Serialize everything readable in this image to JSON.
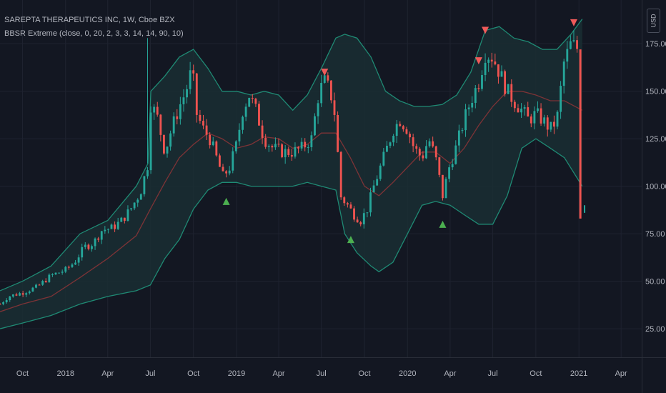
{
  "header": {
    "symbol_line": "SAREPTA THERAPEUTICS INC, 1W, Cboe BZX",
    "indicator_line": "BBSR Extreme (close, 0, 20, 2, 3, 3, 14, 14, 90, 10)",
    "currency": "USD"
  },
  "colors": {
    "background": "#131722",
    "grid": "#1f2330",
    "up": "#26a69a",
    "down": "#ef5350",
    "band": "#1f8a74",
    "band_fill": "#1a2e33",
    "basis": "#7d3336",
    "text": "#b2b5be",
    "buy_marker": "#4caf50",
    "sell_marker": "#f05a5a"
  },
  "chart_data": {
    "type": "candlestick",
    "title": "SAREPTA THERAPEUTICS INC, 1W, Cboe BZX",
    "x_range": [
      "2017-08-14",
      "2021-05-15"
    ],
    "y_range": [
      10,
      198
    ],
    "y_ticks": [
      25,
      50,
      75,
      100,
      125,
      150,
      175
    ],
    "y_tick_labels": [
      "25.00",
      "50.00",
      "75.00",
      "100.00",
      "125.00",
      "150.00",
      "175.00"
    ],
    "x_tick_labels": [
      {
        "date": "2017-10-01",
        "label": "Oct"
      },
      {
        "date": "2018-01-01",
        "label": "2018"
      },
      {
        "date": "2018-04-01",
        "label": "Apr"
      },
      {
        "date": "2018-07-01",
        "label": "Jul"
      },
      {
        "date": "2018-10-01",
        "label": "Oct"
      },
      {
        "date": "2019-01-01",
        "label": "2019"
      },
      {
        "date": "2019-04-01",
        "label": "Apr"
      },
      {
        "date": "2019-07-01",
        "label": "Jul"
      },
      {
        "date": "2019-10-01",
        "label": "Oct"
      },
      {
        "date": "2020-01-01",
        "label": "2020"
      },
      {
        "date": "2020-04-01",
        "label": "Apr"
      },
      {
        "date": "2020-07-01",
        "label": "Jul"
      },
      {
        "date": "2020-10-01",
        "label": "Oct"
      },
      {
        "date": "2021-01-01",
        "label": "2021"
      },
      {
        "date": "2021-04-01",
        "label": "Apr"
      }
    ],
    "grid": true,
    "series": {
      "close_path": [
        [
          "2017-08-14",
          38
        ],
        [
          "2017-09-01",
          42
        ],
        [
          "2017-10-01",
          44
        ],
        [
          "2017-11-01",
          47
        ],
        [
          "2017-12-01",
          53
        ],
        [
          "2018-01-01",
          56
        ],
        [
          "2018-01-20",
          60
        ],
        [
          "2018-02-10",
          68
        ],
        [
          "2018-03-01",
          70
        ],
        [
          "2018-03-20",
          77
        ],
        [
          "2018-04-10",
          78
        ],
        [
          "2018-05-01",
          82
        ],
        [
          "2018-05-20",
          88
        ],
        [
          "2018-06-10",
          97
        ],
        [
          "2018-06-26",
          112
        ],
        [
          "2018-07-02",
          143
        ],
        [
          "2018-07-15",
          137
        ],
        [
          "2018-08-01",
          118
        ],
        [
          "2018-08-15",
          130
        ],
        [
          "2018-09-01",
          142
        ],
        [
          "2018-09-15",
          150
        ],
        [
          "2018-09-28",
          162
        ],
        [
          "2018-10-08",
          138
        ],
        [
          "2018-10-22",
          130
        ],
        [
          "2018-11-05",
          125
        ],
        [
          "2018-11-19",
          115
        ],
        [
          "2018-12-03",
          105
        ],
        [
          "2018-12-17",
          110
        ],
        [
          "2019-01-01",
          122
        ],
        [
          "2019-01-14",
          140
        ],
        [
          "2019-01-28",
          148
        ],
        [
          "2019-02-11",
          140
        ],
        [
          "2019-03-01",
          125
        ],
        [
          "2019-03-20",
          120
        ],
        [
          "2019-04-10",
          118
        ],
        [
          "2019-05-01",
          118
        ],
        [
          "2019-05-20",
          120
        ],
        [
          "2019-06-10",
          125
        ],
        [
          "2019-06-26",
          150
        ],
        [
          "2019-07-08",
          155
        ],
        [
          "2019-07-20",
          150
        ],
        [
          "2019-08-01",
          135
        ],
        [
          "2019-08-10",
          95
        ],
        [
          "2019-08-26",
          90
        ],
        [
          "2019-09-09",
          85
        ],
        [
          "2019-09-23",
          82
        ],
        [
          "2019-10-07",
          88
        ],
        [
          "2019-10-21",
          100
        ],
        [
          "2019-11-04",
          110
        ],
        [
          "2019-11-18",
          120
        ],
        [
          "2019-12-02",
          130
        ],
        [
          "2019-12-16",
          135
        ],
        [
          "2020-01-01",
          130
        ],
        [
          "2020-01-15",
          120
        ],
        [
          "2020-02-01",
          115
        ],
        [
          "2020-02-15",
          125
        ],
        [
          "2020-03-01",
          115
        ],
        [
          "2020-03-16",
          95
        ],
        [
          "2020-03-30",
          110
        ],
        [
          "2020-04-13",
          120
        ],
        [
          "2020-05-01",
          135
        ],
        [
          "2020-05-15",
          145
        ],
        [
          "2020-06-01",
          155
        ],
        [
          "2020-06-15",
          170
        ],
        [
          "2020-07-01",
          168
        ],
        [
          "2020-07-15",
          160
        ],
        [
          "2020-08-01",
          150
        ],
        [
          "2020-08-15",
          145
        ],
        [
          "2020-09-01",
          140
        ],
        [
          "2020-09-15",
          135
        ],
        [
          "2020-10-01",
          138
        ],
        [
          "2020-10-15",
          135
        ],
        [
          "2020-11-01",
          130
        ],
        [
          "2020-11-15",
          135
        ],
        [
          "2020-11-30",
          165
        ],
        [
          "2020-12-15",
          175
        ],
        [
          "2020-12-31",
          172
        ],
        [
          "2021-01-04",
          86
        ]
      ],
      "bb_upper": [
        [
          "2017-08-14",
          45
        ],
        [
          "2017-10-01",
          50
        ],
        [
          "2017-12-01",
          58
        ],
        [
          "2018-02-01",
          75
        ],
        [
          "2018-04-01",
          82
        ],
        [
          "2018-06-01",
          100
        ],
        [
          "2018-06-26",
          112
        ],
        [
          "2018-07-02",
          150
        ],
        [
          "2018-08-01",
          158
        ],
        [
          "2018-09-01",
          168
        ],
        [
          "2018-10-01",
          172
        ],
        [
          "2018-11-01",
          162
        ],
        [
          "2018-12-01",
          150
        ],
        [
          "2019-01-01",
          150
        ],
        [
          "2019-02-01",
          148
        ],
        [
          "2019-03-01",
          150
        ],
        [
          "2019-04-01",
          148
        ],
        [
          "2019-05-01",
          140
        ],
        [
          "2019-06-01",
          148
        ],
        [
          "2019-07-01",
          162
        ],
        [
          "2019-08-01",
          178
        ],
        [
          "2019-08-20",
          180
        ],
        [
          "2019-09-15",
          178
        ],
        [
          "2019-10-15",
          168
        ],
        [
          "2019-11-15",
          150
        ],
        [
          "2019-12-15",
          145
        ],
        [
          "2020-01-15",
          142
        ],
        [
          "2020-02-15",
          142
        ],
        [
          "2020-03-15",
          143
        ],
        [
          "2020-04-15",
          148
        ],
        [
          "2020-05-15",
          160
        ],
        [
          "2020-06-15",
          182
        ],
        [
          "2020-07-15",
          184
        ],
        [
          "2020-08-15",
          178
        ],
        [
          "2020-09-15",
          176
        ],
        [
          "2020-10-15",
          172
        ],
        [
          "2020-11-15",
          172
        ],
        [
          "2020-12-15",
          180
        ],
        [
          "2021-01-08",
          188
        ]
      ],
      "bb_basis": [
        [
          "2017-08-14",
          34
        ],
        [
          "2017-10-01",
          38
        ],
        [
          "2017-12-01",
          42
        ],
        [
          "2018-02-01",
          52
        ],
        [
          "2018-04-01",
          62
        ],
        [
          "2018-06-01",
          74
        ],
        [
          "2018-07-01",
          88
        ],
        [
          "2018-08-01",
          102
        ],
        [
          "2018-09-01",
          115
        ],
        [
          "2018-10-01",
          122
        ],
        [
          "2018-11-01",
          128
        ],
        [
          "2018-12-01",
          125
        ],
        [
          "2019-01-01",
          120
        ],
        [
          "2019-02-01",
          122
        ],
        [
          "2019-03-01",
          126
        ],
        [
          "2019-04-01",
          125
        ],
        [
          "2019-05-01",
          120
        ],
        [
          "2019-06-01",
          122
        ],
        [
          "2019-07-01",
          128
        ],
        [
          "2019-08-01",
          128
        ],
        [
          "2019-09-01",
          115
        ],
        [
          "2019-10-01",
          100
        ],
        [
          "2019-11-01",
          95
        ],
        [
          "2019-12-01",
          102
        ],
        [
          "2020-01-01",
          110
        ],
        [
          "2020-02-01",
          118
        ],
        [
          "2020-03-01",
          118
        ],
        [
          "2020-04-01",
          112
        ],
        [
          "2020-05-01",
          120
        ],
        [
          "2020-06-01",
          132
        ],
        [
          "2020-07-01",
          142
        ],
        [
          "2020-08-01",
          150
        ],
        [
          "2020-09-01",
          150
        ],
        [
          "2020-10-01",
          148
        ],
        [
          "2020-11-01",
          145
        ],
        [
          "2020-12-01",
          145
        ],
        [
          "2021-01-08",
          140
        ]
      ],
      "bb_lower": [
        [
          "2017-08-14",
          25
        ],
        [
          "2017-10-01",
          28
        ],
        [
          "2017-12-01",
          32
        ],
        [
          "2018-02-01",
          38
        ],
        [
          "2018-04-01",
          42
        ],
        [
          "2018-06-01",
          45
        ],
        [
          "2018-07-01",
          48
        ],
        [
          "2018-08-01",
          62
        ],
        [
          "2018-09-01",
          72
        ],
        [
          "2018-10-01",
          88
        ],
        [
          "2018-11-01",
          98
        ],
        [
          "2018-12-01",
          102
        ],
        [
          "2019-01-01",
          102
        ],
        [
          "2019-02-01",
          100
        ],
        [
          "2019-03-01",
          100
        ],
        [
          "2019-04-01",
          100
        ],
        [
          "2019-05-01",
          100
        ],
        [
          "2019-06-01",
          102
        ],
        [
          "2019-07-01",
          100
        ],
        [
          "2019-08-01",
          98
        ],
        [
          "2019-08-20",
          75
        ],
        [
          "2019-09-15",
          65
        ],
        [
          "2019-10-15",
          58
        ],
        [
          "2019-11-01",
          55
        ],
        [
          "2019-12-01",
          60
        ],
        [
          "2020-01-01",
          75
        ],
        [
          "2020-02-01",
          90
        ],
        [
          "2020-03-01",
          92
        ],
        [
          "2020-04-01",
          90
        ],
        [
          "2020-05-01",
          85
        ],
        [
          "2020-06-01",
          80
        ],
        [
          "2020-07-01",
          80
        ],
        [
          "2020-08-01",
          95
        ],
        [
          "2020-09-01",
          120
        ],
        [
          "2020-10-01",
          125
        ],
        [
          "2020-11-01",
          120
        ],
        [
          "2020-12-01",
          115
        ],
        [
          "2021-01-08",
          100
        ]
      ]
    },
    "spikes": [
      {
        "date": "2018-06-25",
        "low": 112,
        "high": 178
      },
      {
        "date": "2021-01-04",
        "low": 83,
        "high": 172
      }
    ],
    "last_price": {
      "date": "2021-01-13",
      "value": 88
    },
    "markers": [
      {
        "type": "buy",
        "date": "2018-12-10",
        "price": 92
      },
      {
        "type": "buy",
        "date": "2019-09-02",
        "price": 72
      },
      {
        "type": "buy",
        "date": "2020-03-16",
        "price": 80
      },
      {
        "type": "sell",
        "date": "2019-07-08",
        "price": 160
      },
      {
        "type": "sell",
        "date": "2020-06-01",
        "price": 166
      },
      {
        "type": "sell",
        "date": "2020-06-15",
        "price": 182
      },
      {
        "type": "sell",
        "date": "2020-12-21",
        "price": 186
      }
    ]
  }
}
